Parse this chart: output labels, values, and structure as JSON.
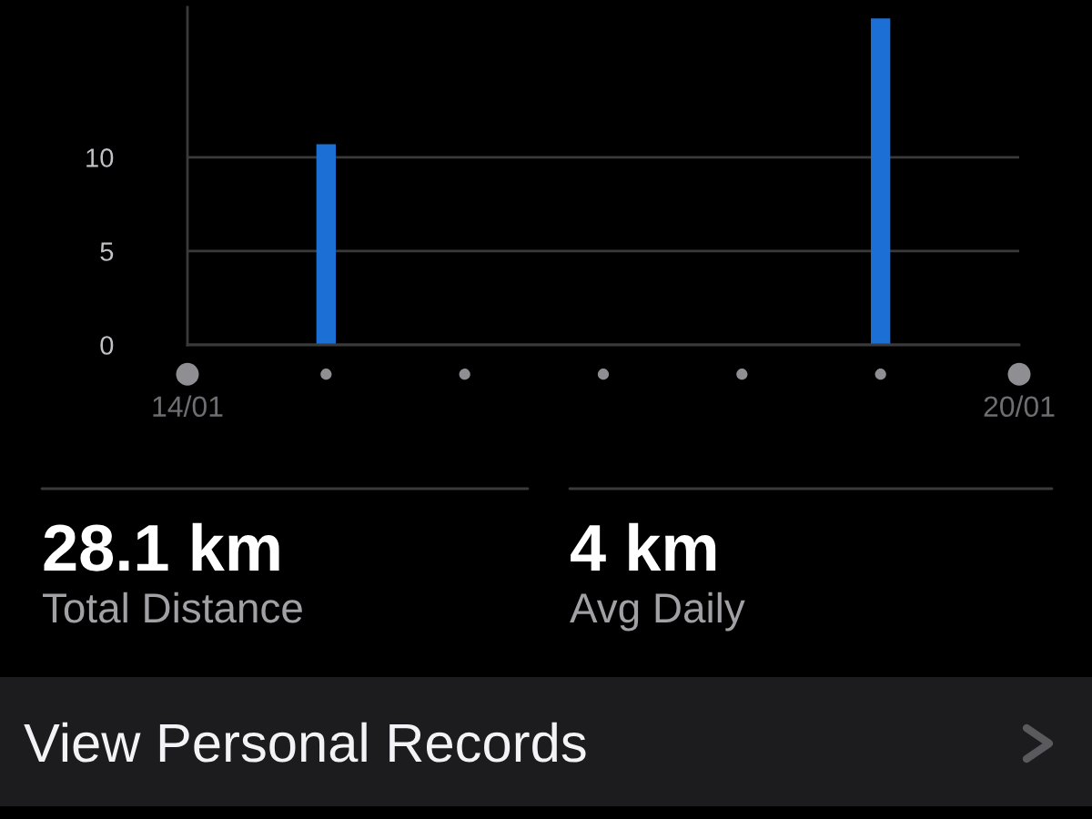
{
  "chart_data": {
    "type": "bar",
    "categories": [
      "14/01",
      null,
      null,
      null,
      null,
      null,
      "20/01"
    ],
    "values": [
      0,
      10.7,
      0,
      0,
      0,
      17.4,
      0
    ],
    "color": "#1c6fd4",
    "ylim": [
      0,
      18
    ],
    "yticks": [
      0,
      5,
      10
    ],
    "grid": "y",
    "annotations": [
      "28.1 km",
      "Total Distance",
      "4 km",
      "Avg Daily",
      "View Personal Records"
    ]
  }
}
